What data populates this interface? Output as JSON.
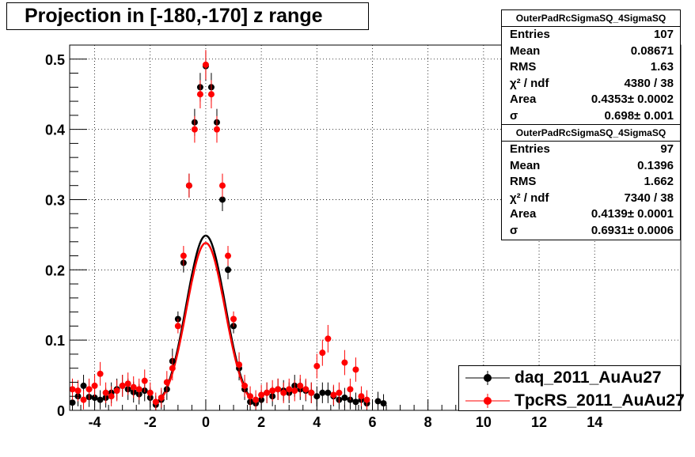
{
  "title": "Projection in [-180,-170] z range",
  "stats": [
    {
      "name": "OuterPadRcSigmaSQ_4SigmaSQ",
      "rows": [
        {
          "key": "Entries",
          "value": "107"
        },
        {
          "key": "Mean",
          "value": "0.08671"
        },
        {
          "key": "RMS",
          "value": "1.63"
        },
        {
          "key": "χ² / ndf",
          "value": "4380 / 38"
        },
        {
          "key": "Area",
          "value": "0.4353± 0.0002"
        },
        {
          "key": "σ",
          "value": "0.698± 0.001"
        }
      ]
    },
    {
      "name": "OuterPadRcSigmaSQ_4SigmaSQ",
      "rows": [
        {
          "key": "Entries",
          "value": "97"
        },
        {
          "key": "Mean",
          "value": "0.1396"
        },
        {
          "key": "RMS",
          "value": "1.662"
        },
        {
          "key": "χ² / ndf",
          "value": "7340 / 38"
        },
        {
          "key": "Area",
          "value": "0.4139± 0.0001"
        },
        {
          "key": "σ",
          "value": "0.6931± 0.0006"
        }
      ]
    }
  ],
  "chart_data": {
    "type": "scatter",
    "title": "Projection in [-180,-170] z range",
    "xlim": [
      -4.9,
      17.1
    ],
    "ylim": [
      0,
      0.52
    ],
    "xticks": [
      "-4",
      "-2",
      "0",
      "2",
      "4",
      "6",
      "8",
      "10",
      "12",
      "14"
    ],
    "yticks": [
      "0",
      "0.1",
      "0.2",
      "0.3",
      "0.4",
      "0.5"
    ],
    "grid": true,
    "legend_position": "bottom-right",
    "series": [
      {
        "name": "daq_2011_AuAu27",
        "color": "#000000",
        "fit": {
          "area": 0.4353,
          "sigma": 0.698
        },
        "points": [
          [
            -4.8,
            0.011
          ],
          [
            -4.6,
            0.02
          ],
          [
            -4.4,
            0.035
          ],
          [
            -4.2,
            0.019
          ],
          [
            -4.0,
            0.018
          ],
          [
            -3.8,
            0.015
          ],
          [
            -3.6,
            0.018
          ],
          [
            -3.4,
            0.025
          ],
          [
            -3.2,
            0.03
          ],
          [
            -3.0,
            0.035
          ],
          [
            -2.8,
            0.03
          ],
          [
            -2.6,
            0.026
          ],
          [
            -2.4,
            0.023
          ],
          [
            -2.2,
            0.028
          ],
          [
            -2.0,
            0.018
          ],
          [
            -1.8,
            0.008
          ],
          [
            -1.6,
            0.015
          ],
          [
            -1.4,
            0.03
          ],
          [
            -1.2,
            0.07
          ],
          [
            -1.0,
            0.13
          ],
          [
            -0.8,
            0.21
          ],
          [
            -0.6,
            0.32
          ],
          [
            -0.4,
            0.41
          ],
          [
            -0.2,
            0.46
          ],
          [
            0.0,
            0.49
          ],
          [
            0.2,
            0.46
          ],
          [
            0.4,
            0.41
          ],
          [
            0.6,
            0.3
          ],
          [
            0.8,
            0.2
          ],
          [
            1.0,
            0.12
          ],
          [
            1.2,
            0.06
          ],
          [
            1.4,
            0.03
          ],
          [
            1.6,
            0.012
          ],
          [
            1.8,
            0.01
          ],
          [
            2.0,
            0.015
          ],
          [
            2.2,
            0.025
          ],
          [
            2.4,
            0.02
          ],
          [
            2.6,
            0.03
          ],
          [
            2.8,
            0.028
          ],
          [
            3.0,
            0.025
          ],
          [
            3.2,
            0.035
          ],
          [
            3.4,
            0.03
          ],
          [
            3.6,
            0.028
          ],
          [
            3.8,
            0.025
          ],
          [
            4.0,
            0.02
          ],
          [
            4.2,
            0.025
          ],
          [
            4.4,
            0.025
          ],
          [
            4.6,
            0.02
          ],
          [
            4.8,
            0.015
          ],
          [
            5.0,
            0.018
          ],
          [
            5.2,
            0.015
          ],
          [
            5.4,
            0.012
          ],
          [
            5.6,
            0.015
          ],
          [
            5.8,
            0.01
          ],
          [
            6.2,
            0.013
          ],
          [
            6.4,
            0.01
          ]
        ]
      },
      {
        "name": "TpcRS_2011_AuAu27",
        "color": "#ff0000",
        "fit": {
          "area": 0.4139,
          "sigma": 0.6931
        },
        "points": [
          [
            -4.8,
            0.03
          ],
          [
            -4.6,
            0.028
          ],
          [
            -4.4,
            0.015
          ],
          [
            -4.2,
            0.03
          ],
          [
            -4.0,
            0.035
          ],
          [
            -3.8,
            0.052
          ],
          [
            -3.6,
            0.025
          ],
          [
            -3.4,
            0.02
          ],
          [
            -3.2,
            0.028
          ],
          [
            -3.0,
            0.035
          ],
          [
            -2.8,
            0.038
          ],
          [
            -2.6,
            0.033
          ],
          [
            -2.4,
            0.03
          ],
          [
            -2.2,
            0.042
          ],
          [
            -2.0,
            0.025
          ],
          [
            -1.8,
            0.012
          ],
          [
            -1.6,
            0.018
          ],
          [
            -1.4,
            0.04
          ],
          [
            -1.2,
            0.06
          ],
          [
            -1.0,
            0.12
          ],
          [
            -0.8,
            0.22
          ],
          [
            -0.6,
            0.32
          ],
          [
            -0.4,
            0.4
          ],
          [
            -0.2,
            0.45
          ],
          [
            0.0,
            0.492
          ],
          [
            0.2,
            0.45
          ],
          [
            0.4,
            0.4
          ],
          [
            0.6,
            0.32
          ],
          [
            0.8,
            0.22
          ],
          [
            1.0,
            0.13
          ],
          [
            1.2,
            0.065
          ],
          [
            1.4,
            0.035
          ],
          [
            1.6,
            0.02
          ],
          [
            1.8,
            0.015
          ],
          [
            2.0,
            0.022
          ],
          [
            2.2,
            0.025
          ],
          [
            2.4,
            0.028
          ],
          [
            2.6,
            0.03
          ],
          [
            2.8,
            0.025
          ],
          [
            3.0,
            0.03
          ],
          [
            3.2,
            0.028
          ],
          [
            3.4,
            0.035
          ],
          [
            3.6,
            0.03
          ],
          [
            3.8,
            0.025
          ],
          [
            4.0,
            0.063
          ],
          [
            4.2,
            0.082
          ],
          [
            4.4,
            0.102
          ],
          [
            4.6,
            0.022
          ],
          [
            4.8,
            0.025
          ],
          [
            5.0,
            0.068
          ],
          [
            5.2,
            0.03
          ],
          [
            5.4,
            0.058
          ],
          [
            5.6,
            0.02
          ],
          [
            5.8,
            0.015
          ]
        ]
      }
    ]
  }
}
